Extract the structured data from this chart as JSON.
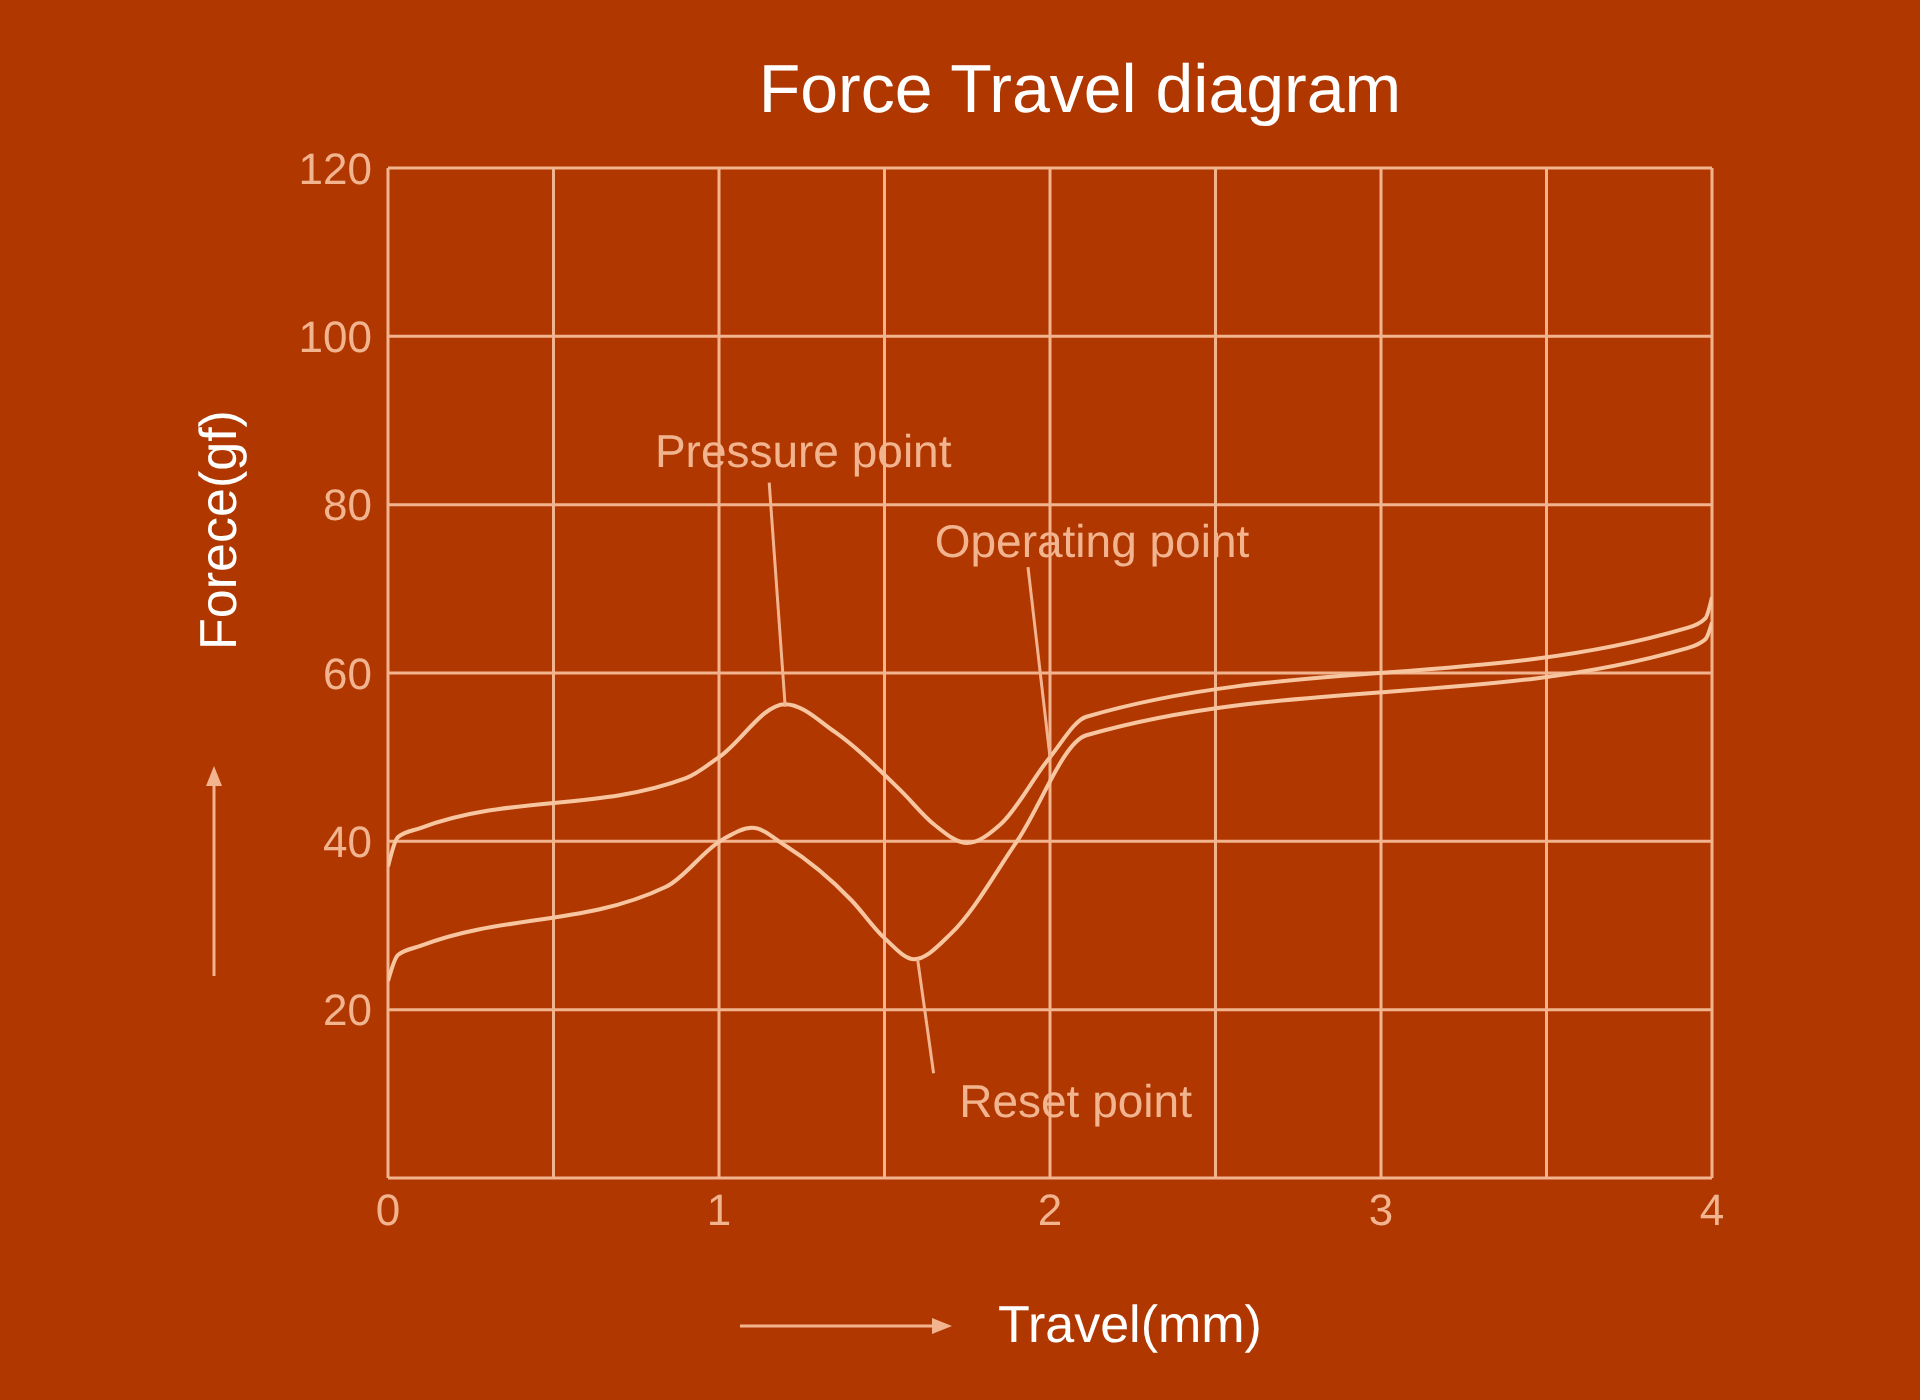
{
  "chart_data": {
    "type": "line",
    "title": "Force Travel diagram",
    "xlabel": "Travel(mm)",
    "ylabel": "Forece(gf)",
    "xlim": [
      0,
      4
    ],
    "xticks": [
      0,
      {
        "value": 0.5,
        "label": null
      },
      1,
      {
        "value": 1.5,
        "label": null
      },
      2,
      {
        "value": 2.5,
        "label": null
      },
      3,
      {
        "value": 3.5,
        "label": null
      },
      4
    ],
    "ylim": [
      0,
      120
    ],
    "yticks": [
      20,
      40,
      60,
      80,
      100,
      120
    ],
    "grid": true,
    "marker": "none",
    "line_style": "solid",
    "series": [
      {
        "color": "#f7c6a0",
        "x": [
          0,
          0.03,
          0.1,
          0.9,
          1.0,
          1.2,
          1.35,
          1.55,
          1.65,
          1.75,
          1.85,
          2.0,
          2.11,
          3.92,
          3.98,
          4
        ],
        "values": [
          37,
          40.5,
          41.6,
          47.5,
          50,
          56.3,
          53,
          46,
          42,
          39.8,
          42,
          50,
          54.8,
          65.3,
          66.5,
          69
        ]
      },
      {
        "color": "#f7c6a0",
        "x": [
          0,
          0.03,
          0.1,
          0.84,
          1.01,
          1.1,
          1.2,
          1.4,
          1.5,
          1.59,
          1.7,
          1.9,
          2.11,
          3.92,
          3.98,
          4
        ],
        "values": [
          23.4,
          26.5,
          27.6,
          34.6,
          40.2,
          41.6,
          39.5,
          33,
          28.5,
          26,
          29,
          40,
          52.6,
          62.9,
          64,
          66
        ]
      }
    ],
    "annotations": [
      {
        "text": "Pressure point",
        "x": 1.2,
        "y": 56
      },
      {
        "text": "Operating point",
        "x": 2.0,
        "y": 50
      },
      {
        "text": "Reset point",
        "x": 1.6,
        "y": 26
      }
    ]
  }
}
